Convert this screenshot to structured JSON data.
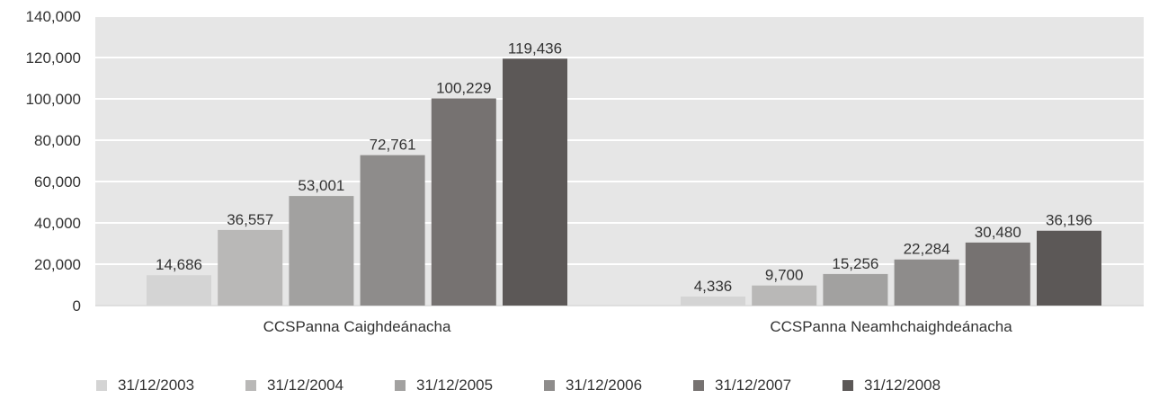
{
  "chart_data": {
    "type": "bar",
    "title": "",
    "xlabel": "",
    "ylabel": "",
    "categories": [
      "CCSPanna Caighdeánacha",
      "CCSPanna Neamhchaighdeánacha"
    ],
    "ylim": [
      0,
      140000
    ],
    "yticks": [
      0,
      20000,
      40000,
      60000,
      80000,
      100000,
      120000,
      140000
    ],
    "ytick_labels": [
      "0",
      "20,000",
      "40,000",
      "60,000",
      "80,000",
      "100,000",
      "120,000",
      "140,000"
    ],
    "grid": true,
    "legend_position": "bottom",
    "plot_background": "#e6e6e6",
    "series": [
      {
        "name": "31/12/2003",
        "color": "#d4d4d4",
        "values": [
          14686,
          4336
        ],
        "labels": [
          "14,686",
          "4,336"
        ]
      },
      {
        "name": "31/12/2004",
        "color": "#b9b8b7",
        "values": [
          36557,
          9700
        ],
        "labels": [
          "36,557",
          "9,700"
        ]
      },
      {
        "name": "31/12/2005",
        "color": "#a2a1a0",
        "values": [
          53001,
          15256
        ],
        "labels": [
          "53,001",
          "15,256"
        ]
      },
      {
        "name": "31/12/2006",
        "color": "#8e8c8b",
        "values": [
          72761,
          22284
        ],
        "labels": [
          "72,761",
          "22,284"
        ]
      },
      {
        "name": "31/12/2007",
        "color": "#767271",
        "values": [
          100229,
          30480
        ],
        "labels": [
          "100,229",
          "30,480"
        ]
      },
      {
        "name": "31/12/2008",
        "color": "#5c5857",
        "values": [
          119436,
          36196
        ],
        "labels": [
          "119,436",
          "36,196"
        ]
      }
    ]
  }
}
